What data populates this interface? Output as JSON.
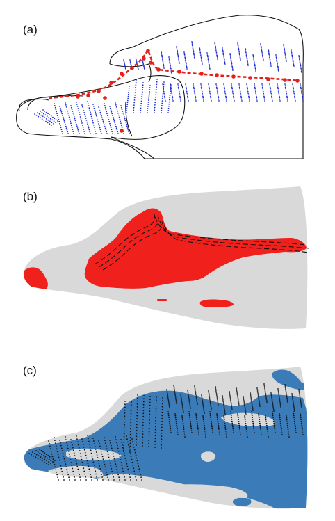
{
  "panels": [
    {
      "id": "a",
      "label": "(a)"
    },
    {
      "id": "b",
      "label": "(b)"
    },
    {
      "id": "c",
      "label": "(c)"
    }
  ],
  "colors": {
    "outline": "#111111",
    "fiber_blue": "#1f2fd6",
    "region_red": "#f0201c",
    "path_red": "#e3201b",
    "silhouette_gray": "#d9d9d9",
    "coverage_blue": "#3a7bb8",
    "dashed_black": "#111111",
    "fiber_black": "#111111"
  }
}
